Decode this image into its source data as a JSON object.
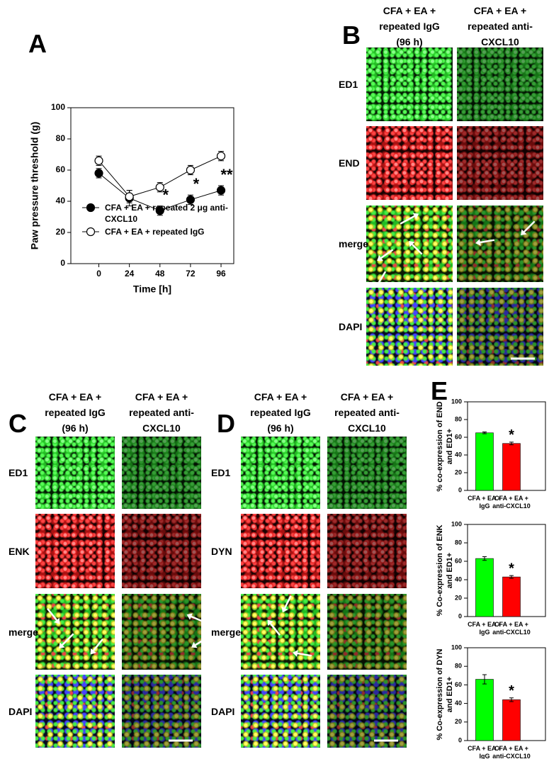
{
  "panel_labels": [
    "A",
    "B",
    "C",
    "D",
    "E"
  ],
  "image_panels": [
    {
      "columns": [
        "CFA + EA + repeated IgG (96 h)",
        "CFA + EA + repeated anti-CXCL10"
      ],
      "rows": [
        "ED1",
        "END",
        "merge",
        "DAPI"
      ]
    },
    {
      "columns": [
        "CFA + EA + repeated IgG (96 h)",
        "CFA + EA + repeated anti-CXCL10"
      ],
      "rows": [
        "ED1",
        "ENK",
        "merge",
        "DAPI"
      ]
    },
    {
      "columns": [
        "CFA + EA + repeated IgG (96 h)",
        "CFA + EA + repeated anti-CXCL10"
      ],
      "rows": [
        "ED1",
        "DYN",
        "merge",
        "DAPI"
      ]
    }
  ],
  "chart_data": [
    {
      "type": "line",
      "y_label": "Paw pressure threshold (g)",
      "x_label": "Time [h]",
      "x": [
        0,
        24,
        48,
        72,
        96
      ],
      "xlim": [
        -22,
        106
      ],
      "xticks": [
        0,
        24,
        48,
        72,
        96
      ],
      "ylim": [
        0,
        100
      ],
      "yticks": [
        0,
        20,
        40,
        60,
        80,
        100
      ],
      "legend": "lower left",
      "series": [
        {
          "name": "CFA + EA + repeated 2 μg anti-CXCL10",
          "color": "#000000",
          "marker_fill": "#000000",
          "values": [
            58,
            42,
            34,
            41,
            47
          ],
          "errors": [
            3,
            5,
            3,
            3,
            3
          ]
        },
        {
          "name": "CFA + EA + repeated IgG",
          "color": "#000000",
          "marker_fill": "#ffffff",
          "values": [
            66,
            43,
            49,
            60,
            69
          ],
          "errors": [
            3,
            4,
            3,
            3,
            3
          ]
        }
      ],
      "annotations": [
        {
          "text": "*",
          "x": 48
        },
        {
          "text": "*",
          "x": 72
        },
        {
          "text": "**",
          "x": 96
        }
      ]
    },
    {
      "type": "bar",
      "y_label": "% co-expression of END and ED1+",
      "categories": [
        "CFA + EA + IgG",
        "CFA + EA + anti-CXCL10"
      ],
      "values": [
        65,
        53
      ],
      "errors": [
        1,
        1.5
      ],
      "colors": [
        "#00ff00",
        "#ff0000"
      ],
      "ylim": [
        0,
        100
      ],
      "yticks": [
        0,
        20,
        40,
        60,
        80,
        100
      ],
      "annotations": [
        {
          "text": "*",
          "x": "CFA + EA + anti-CXCL10"
        }
      ]
    },
    {
      "type": "bar",
      "y_label": "% Co-expression of ENK and ED1+",
      "categories": [
        "CFA + EA + IgG",
        "CFA + EA + anti-CXCL10"
      ],
      "values": [
        63,
        43
      ],
      "errors": [
        2,
        1.5
      ],
      "colors": [
        "#00ff00",
        "#ff0000"
      ],
      "ylim": [
        0,
        100
      ],
      "yticks": [
        0,
        20,
        40,
        60,
        80,
        100
      ],
      "annotations": [
        {
          "text": "*",
          "x": "CFA + EA + anti-CXCL10"
        }
      ]
    },
    {
      "type": "bar",
      "y_label": "% Co-expression of DYN and ED1+",
      "categories": [
        "CFA + EA + IgG",
        "CFA + EA + anti-CXCL10"
      ],
      "values": [
        66,
        44
      ],
      "errors": [
        5,
        2
      ],
      "colors": [
        "#00ff00",
        "#ff0000"
      ],
      "ylim": [
        0,
        100
      ],
      "yticks": [
        0,
        20,
        40,
        60,
        80,
        100
      ],
      "annotations": [
        {
          "text": "*",
          "x": "CFA + EA + anti-CXCL10"
        }
      ]
    }
  ]
}
